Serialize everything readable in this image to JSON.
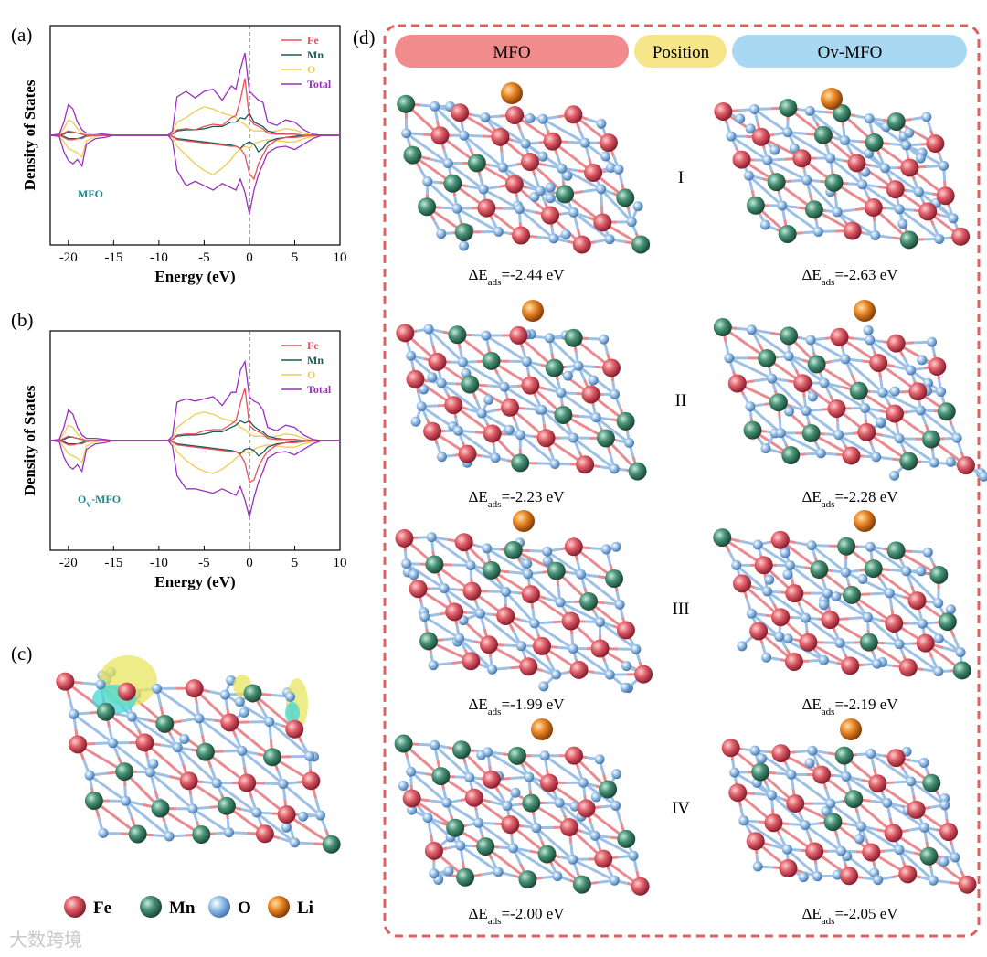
{
  "panels": {
    "a": "(a)",
    "b": "(b)",
    "c": "(c)",
    "d": "(d)"
  },
  "chart_data": [
    {
      "type": "line",
      "x_label": "Energy (eV)",
      "y_label": "Density of States",
      "annotation": "MFO",
      "x": [
        -22,
        -21,
        -20.5,
        -20,
        -19.5,
        -19,
        -18.5,
        -18,
        -17,
        -16,
        -15,
        -14,
        -9,
        -8.5,
        -8,
        -7,
        -6,
        -5,
        -4,
        -3,
        -2,
        -1.5,
        -1,
        -0.5,
        0,
        0.5,
        1,
        1.5,
        2,
        3,
        4,
        5,
        6,
        7,
        8,
        10
      ],
      "xlim": [
        -22,
        10
      ],
      "xticks": [
        -20,
        -15,
        -10,
        -5,
        0,
        5,
        10
      ],
      "ylim": [
        -10,
        10
      ],
      "vline": 0,
      "legend": "upper right",
      "series": [
        {
          "name": "Fe",
          "color": "#e8505a",
          "values": [
            0,
            0,
            0.2,
            0.4,
            0.3,
            0.2,
            0.1,
            0,
            0,
            0,
            0,
            0,
            0,
            0.1,
            0.5,
            0.6,
            0.5,
            0.8,
            1,
            0.9,
            1.6,
            1.8,
            3.2,
            5.2,
            1.5,
            1,
            0.8,
            0.6,
            0.2,
            0.1,
            0.1,
            0.1,
            0,
            0,
            0,
            0
          ],
          "values_down": [
            0,
            0,
            -0.2,
            -0.4,
            -0.4,
            -0.3,
            -0.3,
            -0.1,
            0,
            0,
            0,
            0,
            0,
            -0.1,
            -0.4,
            -0.5,
            -0.6,
            -0.7,
            -0.8,
            -0.9,
            -1,
            -1,
            -1.2,
            -1.8,
            -3.5,
            -4,
            -2.6,
            -1.8,
            -1,
            -0.4,
            -0.2,
            -0.2,
            -0.1,
            0,
            0,
            0
          ]
        },
        {
          "name": "Mn",
          "color": "#1a5a5a",
          "values": [
            0,
            0,
            0.1,
            0.3,
            0.3,
            0.2,
            0.1,
            0,
            0,
            0,
            0,
            0,
            0,
            0.1,
            0.4,
            0.5,
            0.5,
            0.6,
            0.8,
            0.8,
            1.2,
            1.2,
            1.6,
            1.5,
            2,
            1.2,
            1,
            0.8,
            0.4,
            0.2,
            0.1,
            0.1,
            0,
            0,
            0,
            0
          ],
          "values_down": [
            0,
            0,
            -0.1,
            -0.3,
            -0.3,
            -0.3,
            -0.2,
            0,
            0,
            0,
            0,
            0,
            0,
            -0.1,
            -0.3,
            -0.4,
            -0.5,
            -0.6,
            -0.7,
            -0.8,
            -0.9,
            -1,
            -1.2,
            -0.8,
            -0.6,
            -0.8,
            -1.5,
            -1.2,
            -0.6,
            -0.3,
            -0.2,
            -0.1,
            0,
            0,
            0,
            0
          ]
        },
        {
          "name": "O",
          "color": "#f0cc50",
          "values": [
            0,
            0.1,
            0.6,
            1.4,
            1.2,
            0.6,
            0.2,
            0,
            0,
            0,
            0,
            0,
            0,
            0.2,
            1.2,
            1.6,
            2.2,
            2.6,
            2.4,
            2,
            1.8,
            1.6,
            1.2,
            1,
            0.6,
            0.4,
            0.4,
            0.4,
            0.3,
            0.4,
            0.6,
            0.5,
            0.2,
            0,
            0,
            0
          ],
          "values_down": [
            0,
            -0.1,
            -0.6,
            -1.2,
            -1.4,
            -1.6,
            -2,
            -0.5,
            -0.1,
            0,
            0,
            0,
            0,
            -0.2,
            -1,
            -1.8,
            -2.6,
            -3.2,
            -3.6,
            -3,
            -2.2,
            -1.6,
            -1.2,
            -1,
            -1.2,
            -0.8,
            -0.6,
            -0.5,
            -0.4,
            -0.5,
            -0.6,
            -0.6,
            -0.3,
            -0.1,
            0,
            0
          ]
        },
        {
          "name": "Total",
          "color": "#9a30c0",
          "values": [
            0,
            0.1,
            1.2,
            2.8,
            2.4,
            1.2,
            0.5,
            0.2,
            0.2,
            0.1,
            0,
            0,
            0,
            0.4,
            3.5,
            4,
            3.4,
            4,
            4.2,
            3.2,
            4.5,
            4.2,
            6,
            7.5,
            4,
            3.6,
            3.2,
            3,
            1.2,
            0.9,
            1.4,
            1.2,
            0.5,
            0.1,
            0,
            0
          ],
          "values_down": [
            0,
            -0.1,
            -1.5,
            -2.3,
            -2.6,
            -2.2,
            -2.8,
            -0.8,
            -0.3,
            -0.2,
            0,
            0,
            0,
            -0.5,
            -3.2,
            -4.6,
            -4.2,
            -4.6,
            -5,
            -4.4,
            -4.8,
            -5,
            -4,
            -5.2,
            -7.2,
            -5,
            -3.6,
            -2.6,
            -1.6,
            -1.1,
            -1,
            -1.3,
            -0.8,
            -0.3,
            0,
            0
          ]
        }
      ]
    },
    {
      "type": "line",
      "x_label": "Energy (eV)",
      "y_label": "Density of States",
      "annotation": "O",
      "annotation_sub": "V",
      "annotation_suffix": "-MFO",
      "x": [
        -22,
        -21,
        -20.5,
        -20,
        -19.5,
        -19,
        -18.5,
        -18,
        -17,
        -16,
        -15,
        -14,
        -9,
        -8.5,
        -8,
        -7,
        -6,
        -5,
        -4,
        -3,
        -2,
        -1.5,
        -1,
        -0.5,
        0,
        0.5,
        1,
        1.5,
        2,
        3,
        4,
        5,
        6,
        7,
        8,
        10
      ],
      "xlim": [
        -22,
        10
      ],
      "xticks": [
        -20,
        -15,
        -10,
        -5,
        0,
        5,
        10
      ],
      "ylim": [
        -10,
        10
      ],
      "vline": 0,
      "legend": "upper right",
      "series": [
        {
          "name": "Fe",
          "color": "#e8505a",
          "values": [
            0,
            0,
            0.2,
            0.4,
            0.3,
            0.2,
            0.1,
            0,
            0,
            0,
            0,
            0,
            0,
            0.1,
            0.5,
            0.6,
            0.6,
            0.9,
            1,
            1,
            1.5,
            1.8,
            3.4,
            4.8,
            1.4,
            1,
            0.8,
            0.6,
            0.2,
            0.1,
            0.1,
            0.1,
            0,
            0,
            0,
            0
          ],
          "values_down": [
            0,
            0,
            -0.2,
            -0.4,
            -0.4,
            -0.3,
            -0.3,
            -0.1,
            0,
            0,
            0,
            0,
            0,
            -0.1,
            -0.4,
            -0.5,
            -0.6,
            -0.7,
            -0.8,
            -0.9,
            -1,
            -1,
            -1.3,
            -2,
            -3.8,
            -3.6,
            -2.4,
            -1.6,
            -1,
            -0.4,
            -0.2,
            -0.2,
            -0.1,
            0,
            0,
            0
          ]
        },
        {
          "name": "Mn",
          "color": "#1a5a5a",
          "values": [
            0,
            0,
            0.1,
            0.3,
            0.3,
            0.2,
            0.1,
            0,
            0,
            0,
            0,
            0,
            0,
            0.1,
            0.4,
            0.5,
            0.5,
            0.6,
            0.8,
            0.8,
            1.2,
            1.4,
            1.8,
            1.6,
            1.8,
            1.3,
            1,
            0.8,
            0.4,
            0.2,
            0.1,
            0.1,
            0,
            0,
            0,
            0
          ],
          "values_down": [
            0,
            0,
            -0.1,
            -0.3,
            -0.3,
            -0.3,
            -0.2,
            0,
            0,
            0,
            0,
            0,
            0,
            -0.1,
            -0.3,
            -0.4,
            -0.5,
            -0.6,
            -0.7,
            -0.8,
            -0.9,
            -1,
            -1.2,
            -0.8,
            -0.7,
            -0.9,
            -1.4,
            -1.1,
            -0.6,
            -0.3,
            -0.2,
            -0.1,
            0,
            0,
            0,
            0
          ]
        },
        {
          "name": "O",
          "color": "#f0cc50",
          "values": [
            0,
            0.1,
            0.6,
            1.4,
            1.2,
            0.6,
            0.2,
            0,
            0,
            0,
            0,
            0,
            0,
            0.2,
            1.2,
            1.8,
            2.4,
            2.6,
            2.4,
            2,
            1.8,
            1.6,
            1.2,
            1,
            0.6,
            0.4,
            0.4,
            0.4,
            0.3,
            0.4,
            0.6,
            0.5,
            0.2,
            0,
            0,
            0
          ],
          "values_down": [
            0,
            -0.1,
            -0.6,
            -1.2,
            -1.4,
            -1.6,
            -2,
            -0.5,
            -0.1,
            0,
            0,
            0,
            0,
            -0.2,
            -1,
            -1.8,
            -2.4,
            -2.8,
            -3,
            -2.6,
            -2,
            -1.6,
            -1.2,
            -1,
            -1.2,
            -0.8,
            -0.6,
            -0.5,
            -0.4,
            -0.5,
            -0.6,
            -0.6,
            -0.3,
            -0.1,
            0,
            0
          ]
        },
        {
          "name": "Total",
          "color": "#9a30c0",
          "values": [
            0,
            0.1,
            1.2,
            2.8,
            2.4,
            1.2,
            0.5,
            0.2,
            0.2,
            0.1,
            0,
            0,
            0,
            0.4,
            3.5,
            3.8,
            3.6,
            3.8,
            4,
            3.2,
            4.4,
            4.4,
            6.4,
            7.2,
            4,
            3.6,
            3.4,
            2.8,
            1.2,
            0.9,
            1.4,
            1.2,
            0.5,
            0.1,
            0,
            0
          ],
          "values_down": [
            0,
            -0.1,
            -1.5,
            -2.3,
            -2.6,
            -2.2,
            -2.8,
            -0.8,
            -0.3,
            -0.2,
            0,
            0,
            0,
            -0.5,
            -3.2,
            -4.4,
            -4.4,
            -4.6,
            -4.8,
            -4.4,
            -4.8,
            -5,
            -4.2,
            -5.4,
            -7,
            -5.2,
            -3.8,
            -2.8,
            -1.6,
            -1.1,
            -1,
            -1.3,
            -0.8,
            -0.3,
            0,
            0
          ]
        }
      ]
    }
  ],
  "structures": {
    "headers": [
      "MFO",
      "Position",
      "Ov-MFO"
    ],
    "positions": [
      "I",
      "II",
      "III",
      "IV"
    ],
    "energy_symbol": "ΔE",
    "energy_sub": "ads",
    "energies": [
      [
        "=-2.44 eV",
        "=-2.63 eV"
      ],
      [
        "=-2.23 eV",
        "=-2.28 eV"
      ],
      [
        "=-1.99 eV",
        "=-2.19 eV"
      ],
      [
        "=-2.00 eV",
        "=-2.05 eV"
      ]
    ]
  },
  "atom_legend": [
    "Fe",
    "Mn",
    "O",
    "Li"
  ],
  "watermark": "大数跨境"
}
